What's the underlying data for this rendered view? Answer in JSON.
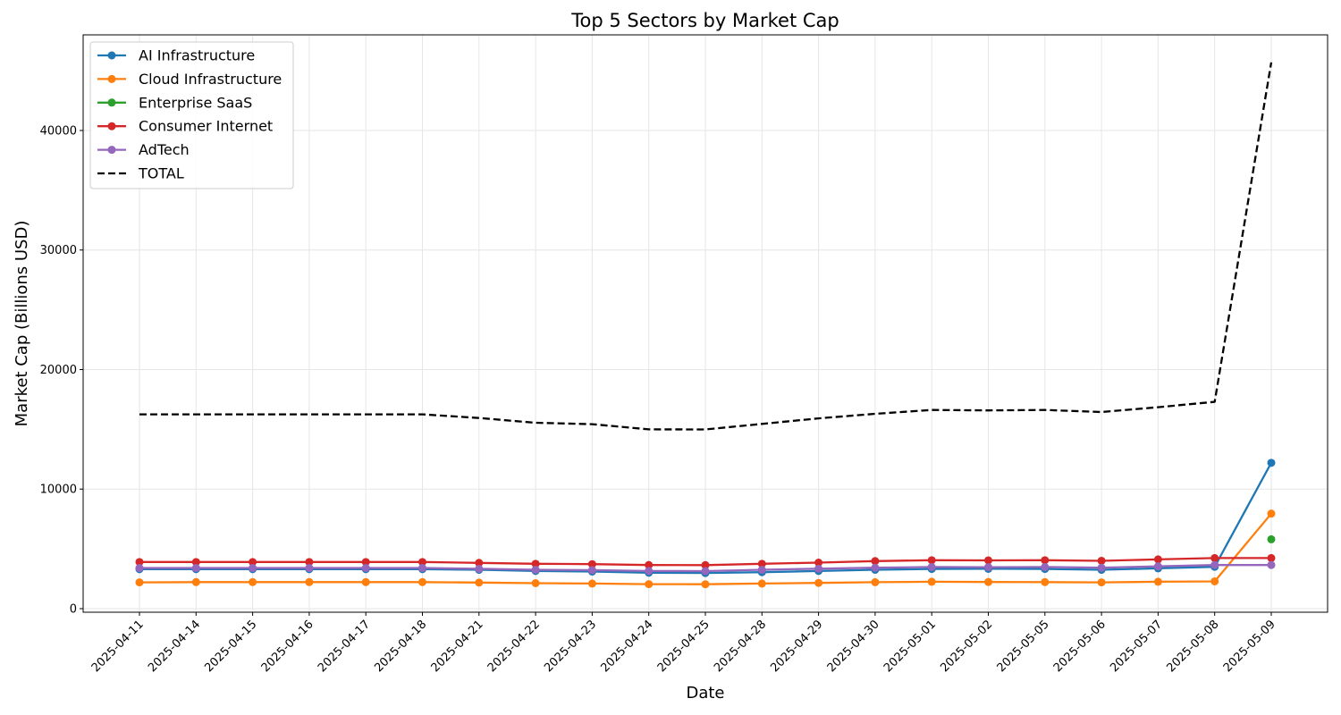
{
  "chart_data": {
    "type": "line",
    "title": "Top 5 Sectors by Market Cap",
    "xlabel": "Date",
    "ylabel": "Market Cap (Billions USD)",
    "x": [
      "2025-04-11",
      "2025-04-14",
      "2025-04-15",
      "2025-04-16",
      "2025-04-17",
      "2025-04-18",
      "2025-04-21",
      "2025-04-22",
      "2025-04-23",
      "2025-04-24",
      "2025-04-25",
      "2025-04-28",
      "2025-04-29",
      "2025-04-30",
      "2025-05-01",
      "2025-05-02",
      "2025-05-05",
      "2025-05-06",
      "2025-05-07",
      "2025-05-08",
      "2025-05-09"
    ],
    "ylim": [
      -300,
      48000
    ],
    "yticks": [
      0,
      10000,
      20000,
      30000,
      40000
    ],
    "grid": true,
    "legend_position": "upper left",
    "series": [
      {
        "name": "AI Infrastructure",
        "color": "#1f77b4",
        "style": "solid-marker",
        "values": [
          3300,
          3300,
          3300,
          3300,
          3300,
          3300,
          3250,
          3150,
          3100,
          3000,
          2980,
          3050,
          3150,
          3250,
          3320,
          3330,
          3320,
          3250,
          3370,
          3500,
          12200
        ]
      },
      {
        "name": "Cloud Infrastructure",
        "color": "#ff7f0e",
        "style": "solid-marker",
        "values": [
          2200,
          2220,
          2220,
          2220,
          2220,
          2220,
          2180,
          2130,
          2100,
          2050,
          2040,
          2100,
          2150,
          2210,
          2250,
          2230,
          2220,
          2200,
          2250,
          2280,
          7950
        ]
      },
      {
        "name": "Enterprise SaaS",
        "color": "#2ca02c",
        "style": "solid-marker",
        "values": [
          null,
          null,
          null,
          null,
          null,
          null,
          null,
          null,
          null,
          null,
          null,
          null,
          null,
          null,
          null,
          null,
          null,
          null,
          null,
          null,
          5800
        ]
      },
      {
        "name": "Consumer Internet",
        "color": "#d62728",
        "style": "solid-marker",
        "values": [
          3900,
          3900,
          3900,
          3900,
          3900,
          3900,
          3830,
          3750,
          3720,
          3650,
          3640,
          3750,
          3850,
          3980,
          4050,
          4040,
          4050,
          4000,
          4120,
          4230,
          4230
        ]
      },
      {
        "name": "AdTech",
        "color": "#9467bd",
        "style": "solid-marker",
        "values": [
          3400,
          3400,
          3400,
          3400,
          3400,
          3400,
          3330,
          3250,
          3220,
          3150,
          3140,
          3250,
          3340,
          3420,
          3480,
          3470,
          3480,
          3420,
          3540,
          3650,
          3650
        ]
      },
      {
        "name": "TOTAL",
        "color": "#000000",
        "style": "dashed",
        "values": [
          16250,
          16250,
          16250,
          16250,
          16250,
          16250,
          15950,
          15550,
          15430,
          15000,
          14990,
          15450,
          15920,
          16300,
          16620,
          16580,
          16620,
          16450,
          16850,
          17300,
          45700
        ]
      }
    ]
  }
}
